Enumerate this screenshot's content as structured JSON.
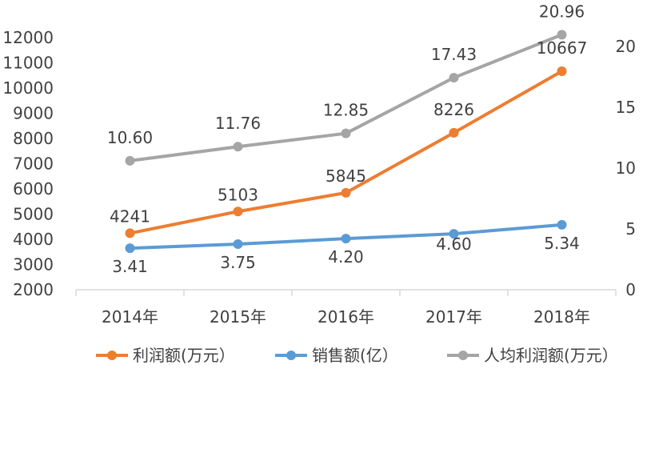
{
  "chart_data": {
    "type": "line",
    "categories": [
      "2014年",
      "2015年",
      "2016年",
      "2017年",
      "2018年"
    ],
    "y_left": {
      "min": 2000,
      "max": 12000,
      "step": 1000,
      "ticks": [
        "2000",
        "3000",
        "4000",
        "5000",
        "6000",
        "7000",
        "8000",
        "9000",
        "10000",
        "11000",
        "12000"
      ]
    },
    "y_right": {
      "min": 0,
      "max": 20,
      "step": 5,
      "ticks": [
        "0",
        "5",
        "10",
        "15",
        "20"
      ]
    },
    "grid": false,
    "legend_position": "bottom",
    "series": [
      {
        "name": "利润额(万元）",
        "axis": "left",
        "color": "#ED7D31",
        "values": [
          4241,
          5103,
          5845,
          8226,
          10667
        ],
        "labels": [
          "4241",
          "5103",
          "5845",
          "8226",
          "10667"
        ]
      },
      {
        "name": "销售额(亿）",
        "axis": "right",
        "color": "#5B9BD5",
        "values": [
          3.41,
          3.75,
          4.2,
          4.6,
          5.34
        ],
        "labels": [
          "3.41",
          "3.75",
          "4.20",
          "4.60",
          "5.34"
        ]
      },
      {
        "name": "人均利润额(万元）",
        "axis": "right",
        "color": "#A5A5A5",
        "values": [
          10.6,
          11.76,
          12.85,
          17.43,
          20.96
        ],
        "labels": [
          "10.60",
          "11.76",
          "12.85",
          "17.43",
          "20.96"
        ]
      }
    ]
  }
}
